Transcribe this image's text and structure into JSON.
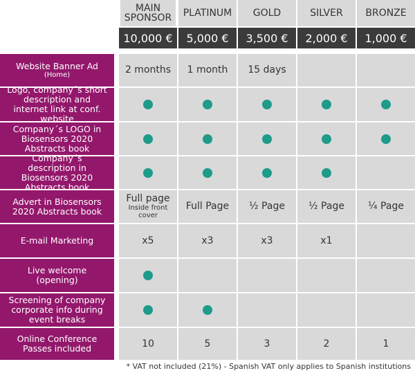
{
  "tiers": [
    {
      "name": "MAIN SPONSOR",
      "price": "10,000 €"
    },
    {
      "name": "PLATINUM",
      "price": "5,000 €"
    },
    {
      "name": "GOLD",
      "price": "3,500 €"
    },
    {
      "name": "SILVER",
      "price": "2,000 €"
    },
    {
      "name": "BRONZE",
      "price": "1,000 €"
    }
  ],
  "rows": [
    {
      "label": "Website Banner Ad",
      "sublabel": "(Home)",
      "cells": [
        {
          "text": "2 months"
        },
        {
          "text": "1 month"
        },
        {
          "text": "15 days"
        },
        {
          "text": ""
        },
        {
          "text": ""
        }
      ]
    },
    {
      "label": "Logo, company´s short description and internet link at conf. website",
      "sublabel": "",
      "cells": [
        {
          "dot": true
        },
        {
          "dot": true
        },
        {
          "dot": true
        },
        {
          "dot": true
        },
        {
          "dot": true
        }
      ]
    },
    {
      "label": "Company´s LOGO in Biosensors 2020 Abstracts book",
      "sublabel": "",
      "cells": [
        {
          "dot": true
        },
        {
          "dot": true
        },
        {
          "dot": true
        },
        {
          "dot": true
        },
        {
          "dot": true
        }
      ]
    },
    {
      "label": "Company´s description in Biosensors 2020 Abstracts book",
      "sublabel": "",
      "cells": [
        {
          "dot": true
        },
        {
          "dot": true
        },
        {
          "dot": true
        },
        {
          "dot": true
        },
        {
          "text": ""
        }
      ]
    },
    {
      "label": "Advert in Biosensors 2020 Abstracts book",
      "sublabel": "",
      "cells": [
        {
          "text": "Full page",
          "sub": "Inside front cover"
        },
        {
          "text": "Full Page"
        },
        {
          "text": "½ Page"
        },
        {
          "text": "½ Page"
        },
        {
          "text": "¼ Page"
        }
      ]
    },
    {
      "label": "E-mail Marketing",
      "sublabel": "",
      "cells": [
        {
          "text": "x5"
        },
        {
          "text": "x3"
        },
        {
          "text": "x3"
        },
        {
          "text": "x1"
        },
        {
          "text": ""
        }
      ]
    },
    {
      "label": "Live welcome (opening)",
      "sublabel": "",
      "cells": [
        {
          "dot": true
        },
        {
          "text": ""
        },
        {
          "text": ""
        },
        {
          "text": ""
        },
        {
          "text": ""
        }
      ]
    },
    {
      "label": "Screening of company corporate info during event breaks",
      "sublabel": "",
      "cells": [
        {
          "dot": true
        },
        {
          "dot": true
        },
        {
          "text": ""
        },
        {
          "text": ""
        },
        {
          "text": ""
        }
      ]
    },
    {
      "label": "Online Conference Passes included",
      "sublabel": "",
      "cells": [
        {
          "text": "10"
        },
        {
          "text": "5"
        },
        {
          "text": "3"
        },
        {
          "text": "2"
        },
        {
          "text": "1"
        }
      ]
    }
  ],
  "footnote": "* VAT not included (21%) - Spanish VAT only applies to Spanish institutions",
  "colors": {
    "row_label_bg": "#93186c",
    "cell_bg": "#d9d9d9",
    "price_bg": "#3b3b3b",
    "dot": "#1e9b8a"
  }
}
